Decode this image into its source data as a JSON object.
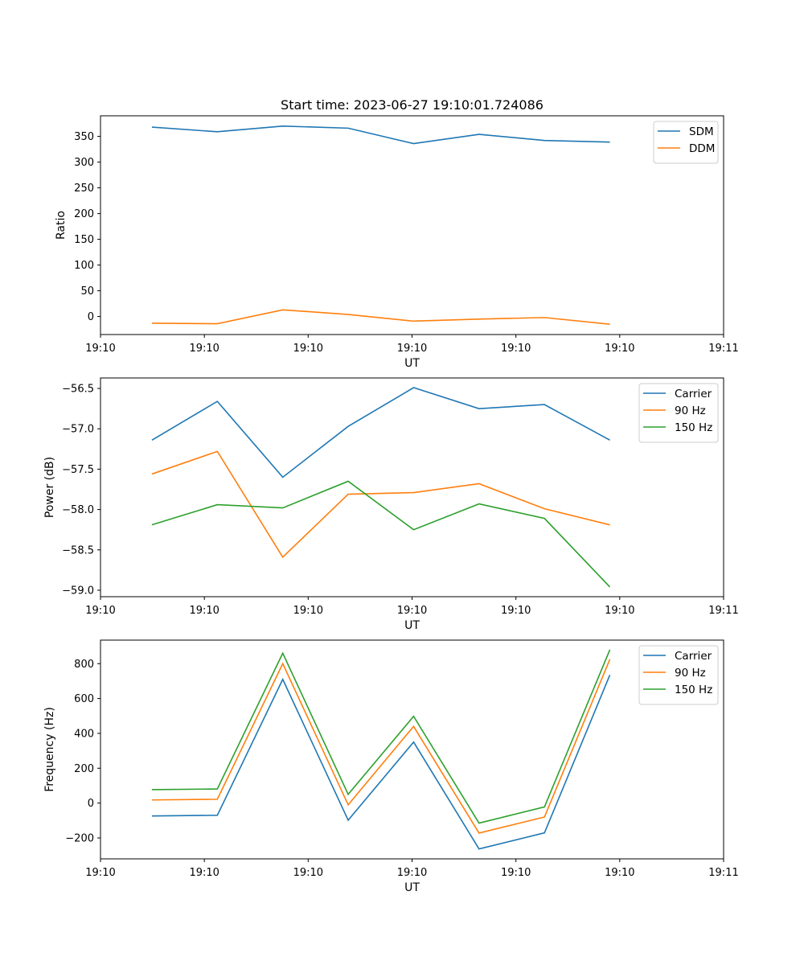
{
  "figure": {
    "title": "Start time: 2023-06-27 19:10:01.724086"
  },
  "chart_data": [
    {
      "type": "line",
      "title": "Start time: 2023-06-27 19:10:01.724086",
      "xlabel": "UT",
      "ylabel": "Ratio",
      "xlim": [
        0,
        1
      ],
      "ylim": [
        -35,
        390
      ],
      "x": [
        0.0825,
        0.1875,
        0.2925,
        0.3975,
        0.5025,
        0.6075,
        0.7125,
        0.8175
      ],
      "x_ticks": [
        0,
        0.1667,
        0.3333,
        0.5,
        0.6667,
        0.8333,
        1
      ],
      "x_tick_labels": [
        "19:10",
        "19:10",
        "19:10",
        "19:10",
        "19:10",
        "19:10",
        "19:11"
      ],
      "y_ticks": [
        0,
        50,
        100,
        150,
        200,
        250,
        300,
        350
      ],
      "y_tick_labels": [
        "0",
        "50",
        "100",
        "150",
        "200",
        "250",
        "300",
        "350"
      ],
      "legend_position": "top-right",
      "series": [
        {
          "name": "SDM",
          "color": "#1f77b4",
          "values": [
            368,
            359,
            370,
            366,
            336,
            354,
            342,
            339
          ]
        },
        {
          "name": "DDM",
          "color": "#ff7f0e",
          "values": [
            -13,
            -14,
            13,
            4,
            -9,
            -5,
            -2,
            -15
          ]
        }
      ]
    },
    {
      "type": "line",
      "xlabel": "UT",
      "ylabel": "Power (dB)",
      "xlim": [
        0,
        1
      ],
      "ylim": [
        -59.08,
        -56.37
      ],
      "x": [
        0.0825,
        0.1875,
        0.2925,
        0.3975,
        0.5025,
        0.6075,
        0.7125,
        0.8175
      ],
      "x_ticks": [
        0,
        0.1667,
        0.3333,
        0.5,
        0.6667,
        0.8333,
        1
      ],
      "x_tick_labels": [
        "19:10",
        "19:10",
        "19:10",
        "19:10",
        "19:10",
        "19:10",
        "19:11"
      ],
      "y_ticks": [
        -59.0,
        -58.5,
        -58.0,
        -57.5,
        -57.0,
        -56.5
      ],
      "y_tick_labels": [
        "−59.0",
        "−58.5",
        "−58.0",
        "−57.5",
        "−57.0",
        "−56.5"
      ],
      "legend_position": "top-right",
      "series": [
        {
          "name": "Carrier",
          "color": "#1f77b4",
          "values": [
            -57.14,
            -56.66,
            -57.6,
            -56.97,
            -56.49,
            -56.75,
            -56.7,
            -57.14
          ]
        },
        {
          "name": "90 Hz",
          "color": "#ff7f0e",
          "values": [
            -57.56,
            -57.28,
            -58.59,
            -57.81,
            -57.79,
            -57.68,
            -57.99,
            -58.19
          ]
        },
        {
          "name": "150 Hz",
          "color": "#2ca02c",
          "values": [
            -58.19,
            -57.94,
            -57.98,
            -57.65,
            -58.25,
            -57.93,
            -58.11,
            -58.96
          ]
        }
      ]
    },
    {
      "type": "line",
      "xlabel": "UT",
      "ylabel": "Frequency (Hz)",
      "xlim": [
        0,
        1
      ],
      "ylim": [
        -320,
        935
      ],
      "x": [
        0.0825,
        0.1875,
        0.2925,
        0.3975,
        0.5025,
        0.6075,
        0.7125,
        0.8175
      ],
      "x_ticks": [
        0,
        0.1667,
        0.3333,
        0.5,
        0.6667,
        0.8333,
        1
      ],
      "x_tick_labels": [
        "19:10",
        "19:10",
        "19:10",
        "19:10",
        "19:10",
        "19:10",
        "19:11"
      ],
      "y_ticks": [
        -200,
        0,
        200,
        400,
        600,
        800
      ],
      "y_tick_labels": [
        "−200",
        "0",
        "200",
        "400",
        "600",
        "800"
      ],
      "legend_position": "top-right",
      "series": [
        {
          "name": "Carrier",
          "color": "#1f77b4",
          "values": [
            -74,
            -70,
            710,
            -98,
            350,
            -263,
            -171,
            735
          ]
        },
        {
          "name": "90 Hz",
          "color": "#ff7f0e",
          "values": [
            18,
            22,
            800,
            -10,
            440,
            -172,
            -80,
            825
          ]
        },
        {
          "name": "150 Hz",
          "color": "#2ca02c",
          "values": [
            77,
            81,
            860,
            50,
            498,
            -115,
            -22,
            880
          ]
        }
      ]
    }
  ]
}
